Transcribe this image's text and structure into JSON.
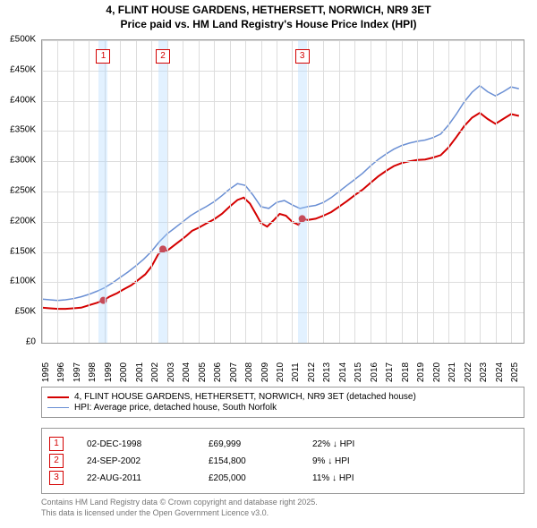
{
  "title_line1": "4, FLINT HOUSE GARDENS, HETHERSETT, NORWICH, NR9 3ET",
  "title_line2": "Price paid vs. HM Land Registry's House Price Index (HPI)",
  "chart": {
    "type": "line",
    "background_color": "#ffffff",
    "grid_color": "#dddddd",
    "border_color": "#999999",
    "x_start": 1995,
    "x_end": 2025.8,
    "y_start": 0,
    "y_end": 500000,
    "y_tick_step": 50000,
    "y_labels": [
      "£0",
      "£50K",
      "£100K",
      "£150K",
      "£200K",
      "£250K",
      "£300K",
      "£350K",
      "£400K",
      "£450K",
      "£500K"
    ],
    "x_ticks": [
      1995,
      1996,
      1997,
      1998,
      1999,
      2000,
      2001,
      2002,
      2003,
      2004,
      2005,
      2006,
      2007,
      2008,
      2009,
      2010,
      2011,
      2012,
      2013,
      2014,
      2015,
      2016,
      2017,
      2018,
      2019,
      2020,
      2021,
      2022,
      2023,
      2024,
      2025
    ],
    "marker_band_color": "rgba(173,216,255,0.35)",
    "markers": [
      {
        "n": "1",
        "x": 1998.92,
        "color": "#d40000"
      },
      {
        "n": "2",
        "x": 2002.73,
        "color": "#d40000"
      },
      {
        "n": "3",
        "x": 2011.64,
        "color": "#d40000"
      }
    ],
    "series": [
      {
        "name": "price_paid",
        "color": "#d40000",
        "width": 2,
        "data": [
          [
            1995,
            58000
          ],
          [
            1995.5,
            57000
          ],
          [
            1996,
            56000
          ],
          [
            1996.5,
            56000
          ],
          [
            1997,
            57000
          ],
          [
            1997.5,
            58000
          ],
          [
            1998,
            62000
          ],
          [
            1998.5,
            66000
          ],
          [
            1998.92,
            69999
          ],
          [
            1999.3,
            76000
          ],
          [
            1999.8,
            82000
          ],
          [
            2000.2,
            88000
          ],
          [
            2000.7,
            95000
          ],
          [
            2001.1,
            103000
          ],
          [
            2001.6,
            113000
          ],
          [
            2002.0,
            126000
          ],
          [
            2002.4,
            145000
          ],
          [
            2002.73,
            154800
          ],
          [
            2003.0,
            152000
          ],
          [
            2003.4,
            160000
          ],
          [
            2003.8,
            168000
          ],
          [
            2004.2,
            176000
          ],
          [
            2004.6,
            185000
          ],
          [
            2005.0,
            190000
          ],
          [
            2005.5,
            197000
          ],
          [
            2006.0,
            204000
          ],
          [
            2006.5,
            213000
          ],
          [
            2007.0,
            225000
          ],
          [
            2007.5,
            236000
          ],
          [
            2007.9,
            240000
          ],
          [
            2008.3,
            230000
          ],
          [
            2008.7,
            212000
          ],
          [
            2009.0,
            198000
          ],
          [
            2009.4,
            192000
          ],
          [
            2009.8,
            202000
          ],
          [
            2010.2,
            213000
          ],
          [
            2010.6,
            210000
          ],
          [
            2011.0,
            200000
          ],
          [
            2011.4,
            195000
          ],
          [
            2011.64,
            205000
          ],
          [
            2012.0,
            203000
          ],
          [
            2012.5,
            205000
          ],
          [
            2013.0,
            210000
          ],
          [
            2013.5,
            216000
          ],
          [
            2014.0,
            225000
          ],
          [
            2014.5,
            234000
          ],
          [
            2015.0,
            244000
          ],
          [
            2015.5,
            253000
          ],
          [
            2016.0,
            264000
          ],
          [
            2016.5,
            275000
          ],
          [
            2017.0,
            284000
          ],
          [
            2017.5,
            292000
          ],
          [
            2018.0,
            297000
          ],
          [
            2018.5,
            300000
          ],
          [
            2019.0,
            302000
          ],
          [
            2019.5,
            303000
          ],
          [
            2020.0,
            306000
          ],
          [
            2020.5,
            310000
          ],
          [
            2021.0,
            323000
          ],
          [
            2021.5,
            340000
          ],
          [
            2022.0,
            358000
          ],
          [
            2022.5,
            372000
          ],
          [
            2023.0,
            380000
          ],
          [
            2023.5,
            370000
          ],
          [
            2024.0,
            362000
          ],
          [
            2024.5,
            370000
          ],
          [
            2025.0,
            378000
          ],
          [
            2025.5,
            375000
          ]
        ]
      },
      {
        "name": "hpi",
        "color": "#6a8fd4",
        "width": 1.5,
        "data": [
          [
            1995,
            72000
          ],
          [
            1995.5,
            71000
          ],
          [
            1996,
            70000
          ],
          [
            1996.5,
            71000
          ],
          [
            1997,
            73000
          ],
          [
            1997.5,
            76000
          ],
          [
            1998,
            80000
          ],
          [
            1998.5,
            85000
          ],
          [
            1999,
            91000
          ],
          [
            1999.5,
            99000
          ],
          [
            2000,
            108000
          ],
          [
            2000.5,
            117000
          ],
          [
            2001,
            127000
          ],
          [
            2001.5,
            138000
          ],
          [
            2002,
            151000
          ],
          [
            2002.5,
            167000
          ],
          [
            2003,
            180000
          ],
          [
            2003.5,
            190000
          ],
          [
            2004,
            200000
          ],
          [
            2004.5,
            210000
          ],
          [
            2005,
            218000
          ],
          [
            2005.5,
            225000
          ],
          [
            2006,
            233000
          ],
          [
            2006.5,
            243000
          ],
          [
            2007,
            254000
          ],
          [
            2007.5,
            263000
          ],
          [
            2008,
            260000
          ],
          [
            2008.5,
            244000
          ],
          [
            2009,
            225000
          ],
          [
            2009.5,
            222000
          ],
          [
            2010,
            232000
          ],
          [
            2010.5,
            235000
          ],
          [
            2011,
            228000
          ],
          [
            2011.5,
            222000
          ],
          [
            2012,
            225000
          ],
          [
            2012.5,
            227000
          ],
          [
            2013,
            232000
          ],
          [
            2013.5,
            240000
          ],
          [
            2014,
            250000
          ],
          [
            2014.5,
            260000
          ],
          [
            2015,
            270000
          ],
          [
            2015.5,
            280000
          ],
          [
            2016,
            292000
          ],
          [
            2016.5,
            303000
          ],
          [
            2017,
            312000
          ],
          [
            2017.5,
            320000
          ],
          [
            2018,
            326000
          ],
          [
            2018.5,
            330000
          ],
          [
            2019,
            333000
          ],
          [
            2019.5,
            335000
          ],
          [
            2020,
            339000
          ],
          [
            2020.5,
            345000
          ],
          [
            2021,
            360000
          ],
          [
            2021.5,
            378000
          ],
          [
            2022,
            398000
          ],
          [
            2022.5,
            414000
          ],
          [
            2023,
            425000
          ],
          [
            2023.5,
            415000
          ],
          [
            2024,
            408000
          ],
          [
            2024.5,
            415000
          ],
          [
            2025,
            423000
          ],
          [
            2025.5,
            420000
          ]
        ]
      }
    ],
    "sale_points": [
      {
        "x": 1998.92,
        "y": 69999,
        "color": "#d40000"
      },
      {
        "x": 2002.73,
        "y": 154800,
        "color": "#d40000"
      },
      {
        "x": 2011.64,
        "y": 205000,
        "color": "#d40000"
      }
    ]
  },
  "legend": {
    "items": [
      {
        "color": "#d40000",
        "width": 2,
        "label": "4, FLINT HOUSE GARDENS, HETHERSETT, NORWICH, NR9 3ET (detached house)"
      },
      {
        "color": "#6a8fd4",
        "width": 1.5,
        "label": "HPI: Average price, detached house, South Norfolk"
      }
    ]
  },
  "sales": [
    {
      "n": "1",
      "color": "#d40000",
      "date": "02-DEC-1998",
      "price": "£69,999",
      "delta": "22% ↓ HPI"
    },
    {
      "n": "2",
      "color": "#d40000",
      "date": "24-SEP-2002",
      "price": "£154,800",
      "delta": "9% ↓ HPI"
    },
    {
      "n": "3",
      "color": "#d40000",
      "date": "22-AUG-2011",
      "price": "£205,000",
      "delta": "11% ↓ HPI"
    }
  ],
  "footer_line1": "Contains HM Land Registry data © Crown copyright and database right 2025.",
  "footer_line2": "This data is licensed under the Open Government Licence v3.0."
}
